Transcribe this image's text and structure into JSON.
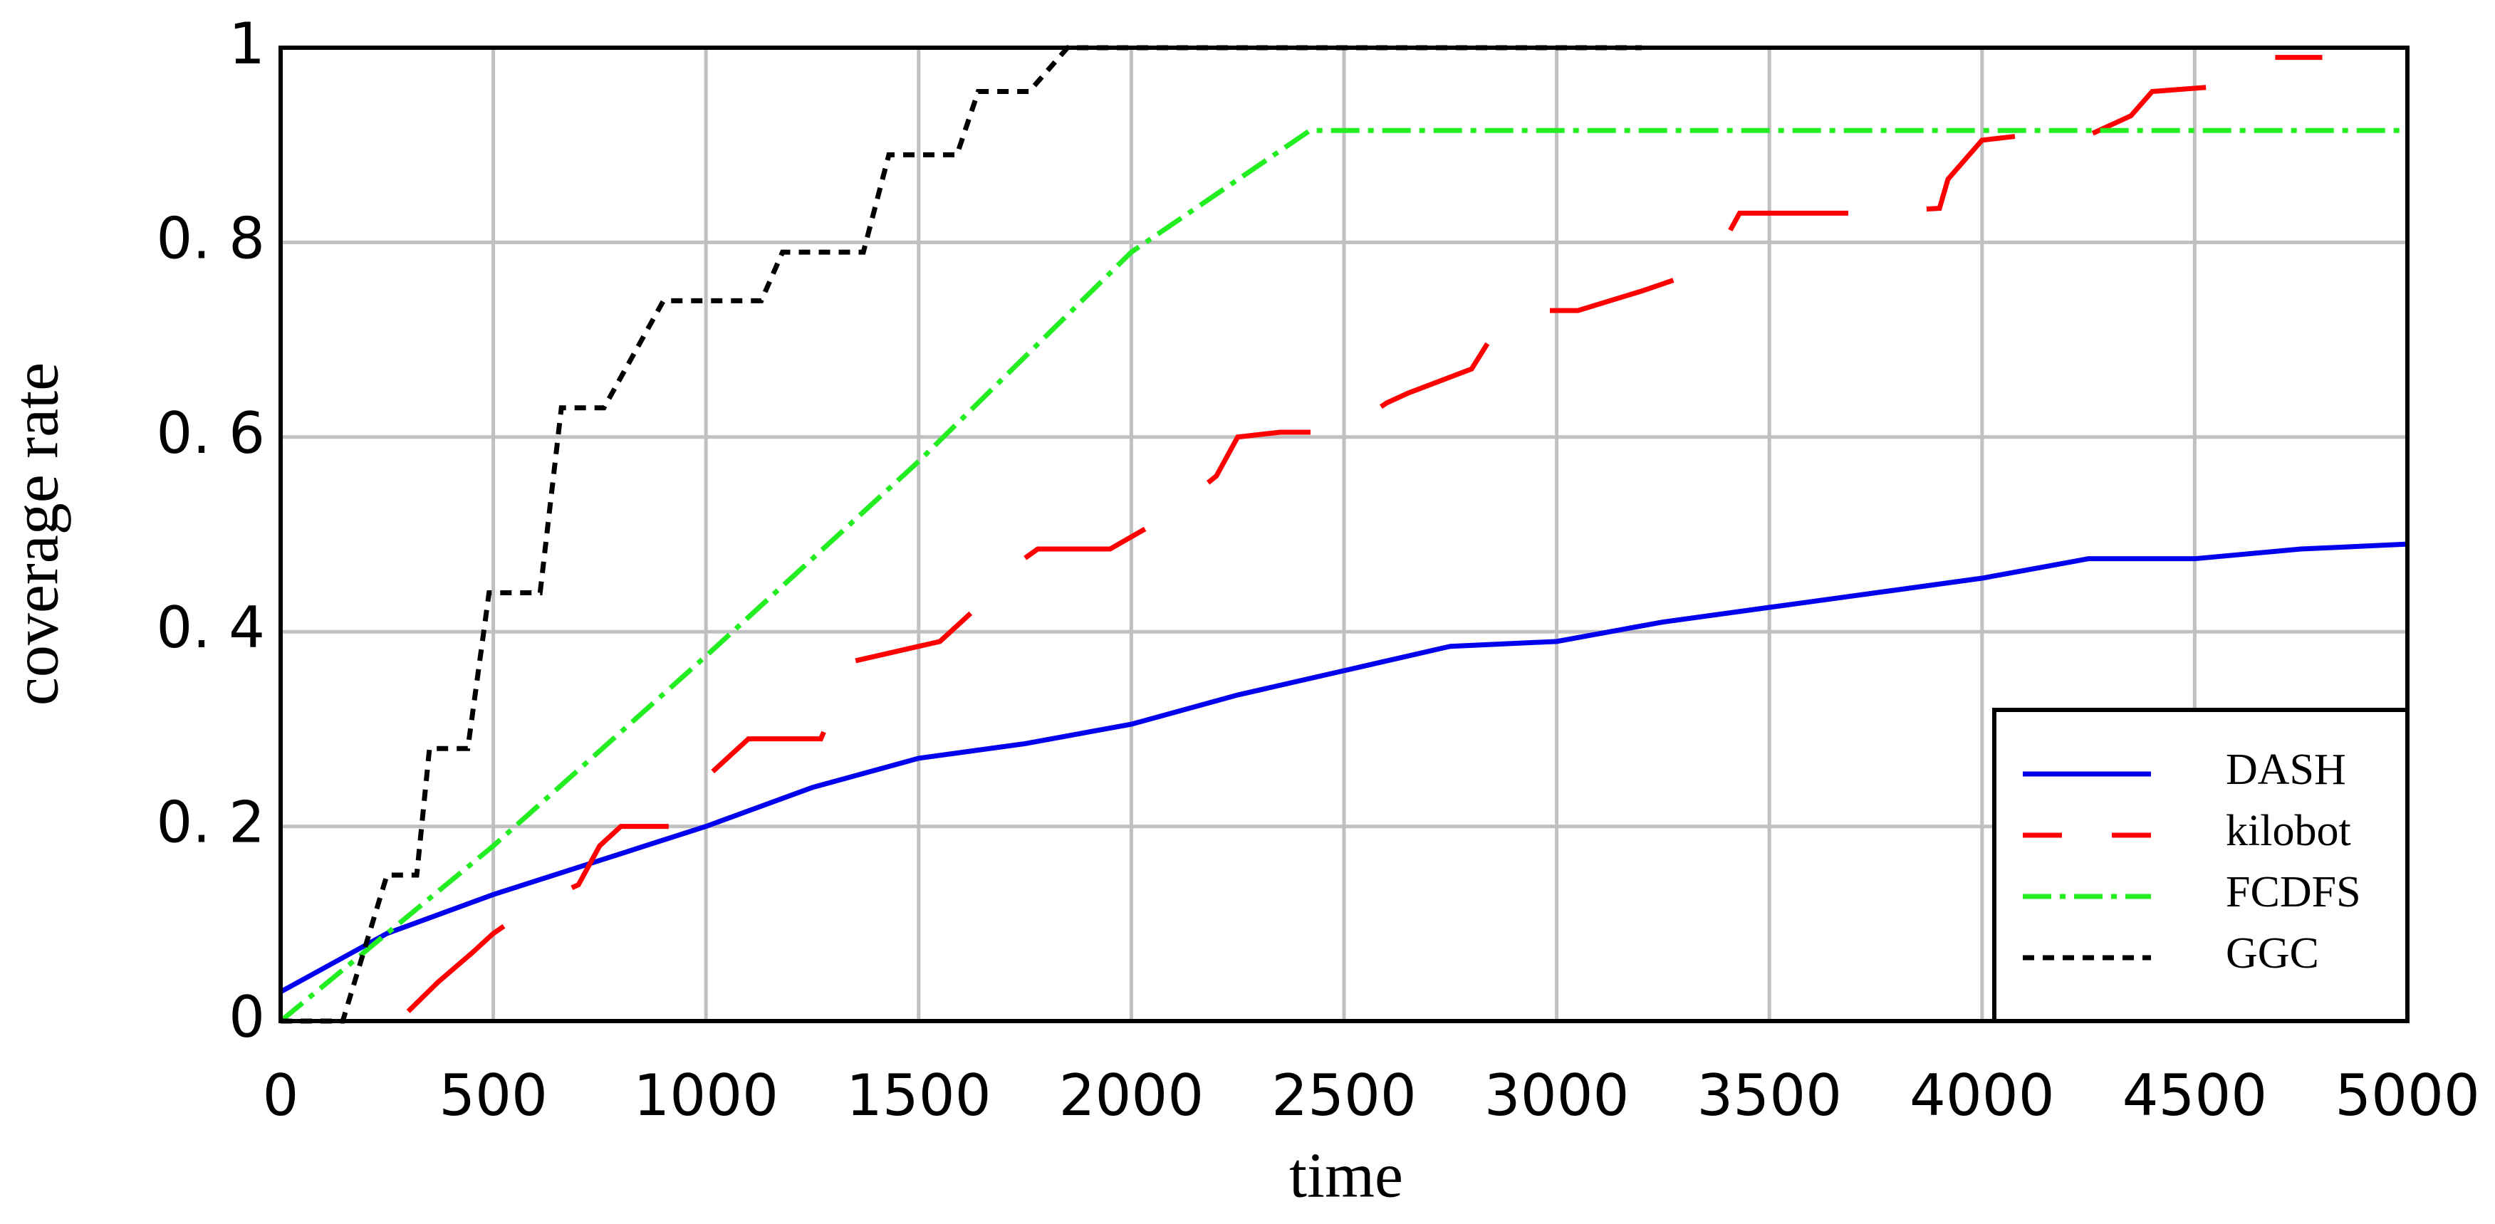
{
  "chart_data": {
    "type": "line",
    "xlabel": "time",
    "ylabel": "coverage rate",
    "xlim": [
      0,
      5000
    ],
    "ylim": [
      0,
      1
    ],
    "xticks": [
      0,
      500,
      1000,
      1500,
      2000,
      2500,
      3000,
      3500,
      4000,
      4500,
      5000
    ],
    "yticks": [
      0,
      {
        "value": 0.2,
        "label": "0. 2"
      },
      {
        "value": 0.4,
        "label": "0. 4"
      },
      {
        "value": 0.6,
        "label": "0. 6"
      },
      {
        "value": 0.8,
        "label": "0. 8"
      },
      1
    ],
    "grid": true,
    "legend": "lower right",
    "series": [
      {
        "name": "DASH",
        "color": "#0000ee",
        "linestyle": "solid",
        "x": [
          0,
          250,
          500,
          750,
          1000,
          1250,
          1500,
          1750,
          2000,
          2250,
          2500,
          2750,
          3000,
          3250,
          3500,
          3750,
          4000,
          4250,
          4500,
          4750,
          5000
        ],
        "values": [
          0.03,
          0.09,
          0.13,
          0.165,
          0.2,
          0.24,
          0.27,
          0.285,
          0.305,
          0.335,
          0.36,
          0.385,
          0.39,
          0.41,
          0.425,
          0.44,
          0.455,
          0.475,
          0.475,
          0.485,
          0.49
        ]
      },
      {
        "name": "kilobot",
        "color": "#ff0000",
        "linestyle": "dashed",
        "x": [
          300,
          370,
          450,
          500,
          600,
          700,
          750,
          800,
          950,
          1000,
          1100,
          1270,
          1350,
          1450,
          1550,
          1650,
          1700,
          1780,
          1950,
          2050,
          2100,
          2200,
          2250,
          2350,
          2500,
          2600,
          2650,
          2800,
          2850,
          2900,
          3050,
          3200,
          3300,
          3380,
          3430,
          3550,
          3700,
          3900,
          3920,
          4000,
          4100,
          4250,
          4350,
          4400,
          4550,
          4650,
          4800
        ],
        "values": [
          0.01,
          0.04,
          0.07,
          0.09,
          0.12,
          0.14,
          0.18,
          0.2,
          0.2,
          0.25,
          0.29,
          0.29,
          0.37,
          0.38,
          0.39,
          0.43,
          0.46,
          0.485,
          0.485,
          0.51,
          0.525,
          0.56,
          0.6,
          0.605,
          0.605,
          0.635,
          0.645,
          0.67,
          0.705,
          0.73,
          0.73,
          0.75,
          0.765,
          0.79,
          0.83,
          0.83,
          0.83,
          0.835,
          0.865,
          0.905,
          0.91,
          0.91,
          0.93,
          0.955,
          0.96,
          0.99,
          0.99
        ]
      },
      {
        "name": "FCDFS",
        "color": "#22ee22",
        "linestyle": "dashdot",
        "x": [
          0,
          500,
          1000,
          1500,
          2000,
          2420,
          5000
        ],
        "values": [
          0,
          0.18,
          0.375,
          0.575,
          0.79,
          0.915,
          0.915
        ]
      },
      {
        "name": "GGC",
        "color": "#000000",
        "linestyle": "dotted",
        "x": [
          0,
          146,
          250,
          320,
          350,
          440,
          490,
          610,
          660,
          760,
          900,
          1130,
          1180,
          1370,
          1430,
          1590,
          1640,
          1760,
          1850,
          3200
        ],
        "values": [
          0,
          0,
          0.15,
          0.15,
          0.28,
          0.28,
          0.44,
          0.44,
          0.63,
          0.63,
          0.74,
          0.74,
          0.79,
          0.79,
          0.89,
          0.89,
          0.955,
          0.955,
          1,
          1
        ]
      }
    ]
  }
}
